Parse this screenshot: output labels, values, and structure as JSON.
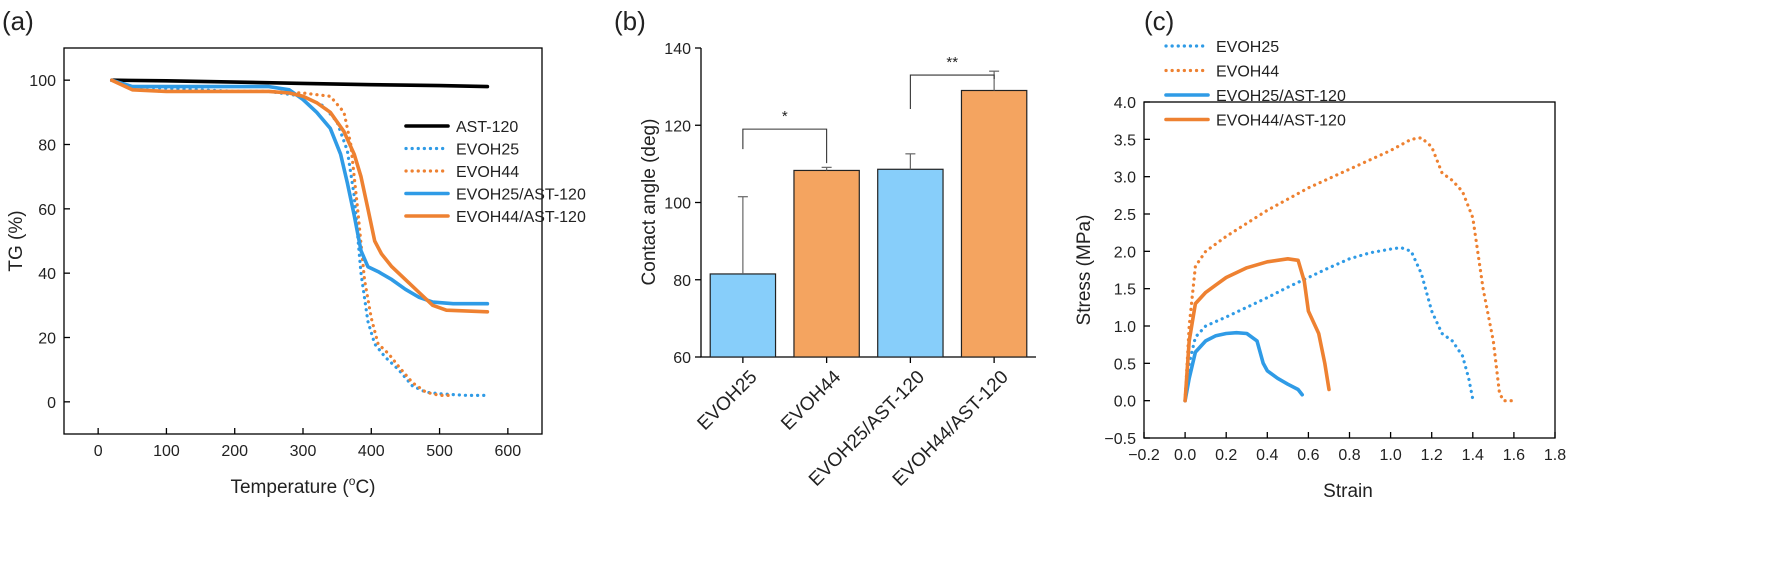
{
  "colors": {
    "blue": "#2f9be6",
    "orange": "#ee8131",
    "black": "#000000",
    "bar_blue": "#87cefa",
    "bar_orange": "#f4a460"
  },
  "panel_labels": [
    "(a)",
    "(b)",
    "(c)"
  ],
  "chart_data": [
    {
      "type": "line",
      "panel": "(a)",
      "xlabel": "Temperature (",
      "xlabel_sup": "o",
      "xlabel_end": "C)",
      "ylabel": "TG (%)",
      "xlim": [
        -50,
        650
      ],
      "ylim": [
        -10,
        110
      ],
      "xticks": [
        0,
        100,
        200,
        300,
        400,
        500,
        600
      ],
      "yticks": [
        0,
        20,
        40,
        60,
        80,
        100
      ],
      "legend_position": "right",
      "series": [
        {
          "name": "AST-120",
          "style": "solid",
          "color": "#000000",
          "x": [
            20,
            100,
            200,
            300,
            400,
            500,
            570
          ],
          "y": [
            100,
            99.8,
            99.4,
            99,
            98.6,
            98.3,
            98
          ]
        },
        {
          "name": "EVOH25",
          "style": "dotted",
          "color": "#2f9be6",
          "x": [
            20,
            50,
            100,
            150,
            200,
            250,
            300,
            330,
            350,
            365,
            375,
            385,
            395,
            405,
            420,
            440,
            460,
            480,
            500,
            540,
            570
          ],
          "y": [
            100,
            98,
            97.5,
            97,
            96.5,
            96.5,
            95,
            92,
            87,
            78,
            64,
            40,
            25,
            18,
            14,
            10,
            5,
            3,
            2.5,
            2,
            2
          ]
        },
        {
          "name": "EVOH44",
          "style": "dotted",
          "color": "#ee8131",
          "x": [
            20,
            50,
            100,
            150,
            200,
            250,
            300,
            340,
            360,
            370,
            380,
            390,
            400,
            410,
            425,
            440,
            460,
            480,
            500,
            520
          ],
          "y": [
            100,
            97,
            96.5,
            96.5,
            96.5,
            96.5,
            96,
            95,
            90,
            80,
            60,
            38,
            26,
            18,
            15,
            11,
            6,
            3,
            2,
            2
          ]
        },
        {
          "name": "EVOH25/AST-120",
          "style": "solid",
          "color": "#2f9be6",
          "x": [
            20,
            50,
            100,
            150,
            200,
            250,
            280,
            300,
            320,
            340,
            355,
            365,
            375,
            385,
            395,
            410,
            430,
            450,
            470,
            490,
            520,
            570
          ],
          "y": [
            100,
            98,
            98,
            98,
            98,
            98,
            97,
            94,
            90,
            85,
            77,
            68,
            58,
            47,
            42,
            40.5,
            38,
            35,
            32.5,
            31,
            30.5,
            30.5
          ]
        },
        {
          "name": "EVOH44/AST-120",
          "style": "solid",
          "color": "#ee8131",
          "x": [
            20,
            50,
            100,
            150,
            200,
            250,
            280,
            300,
            320,
            340,
            360,
            375,
            385,
            395,
            405,
            415,
            430,
            450,
            470,
            490,
            510,
            570
          ],
          "y": [
            100,
            97,
            96.5,
            96.5,
            96.5,
            96.5,
            96,
            95,
            93,
            90,
            84,
            77,
            70,
            60,
            50,
            46,
            42,
            38,
            34,
            30,
            28.5,
            28
          ]
        }
      ]
    },
    {
      "type": "bar",
      "panel": "(b)",
      "ylabel": "Contact angle (deg)",
      "ylim": [
        60,
        140
      ],
      "yticks": [
        60,
        80,
        100,
        120,
        140
      ],
      "categories": [
        "EVOH25",
        "EVOH44",
        "EVOH25/AST-120",
        "EVOH44/AST-120"
      ],
      "values": [
        81.5,
        108.3,
        108.6,
        129
      ],
      "errors": [
        20,
        0.8,
        4,
        5
      ],
      "bar_colors": [
        "#87cefa",
        "#f4a460",
        "#87cefa",
        "#f4a460"
      ],
      "significance": [
        {
          "from": 0,
          "to": 1,
          "label": "*"
        },
        {
          "from": 2,
          "to": 3,
          "label": "**"
        }
      ]
    },
    {
      "type": "line",
      "panel": "(c)",
      "xlabel": "Strain",
      "ylabel": "Stress (MPa)",
      "xlim": [
        -0.2,
        1.8
      ],
      "ylim": [
        -0.5,
        4.0
      ],
      "xticks": [
        -0.2,
        0.0,
        0.2,
        0.4,
        0.6,
        0.8,
        1.0,
        1.2,
        1.4,
        1.6,
        1.8
      ],
      "xtick_labels": [
        "−0.2",
        "0.0",
        "0.2",
        "0.4",
        "0.6",
        "0.8",
        "1.0",
        "1.2",
        "1.4",
        "1.6",
        "1.8"
      ],
      "yticks": [
        -0.5,
        0.0,
        0.5,
        1.0,
        1.5,
        2.0,
        2.5,
        3.0,
        3.5,
        4.0
      ],
      "ytick_labels": [
        "−0.5",
        "0.0",
        "0.5",
        "1.0",
        "1.5",
        "2.0",
        "2.5",
        "3.0",
        "3.5",
        "4.0"
      ],
      "legend_position": "top-left",
      "series": [
        {
          "name": "EVOH25",
          "style": "dotted",
          "color": "#2f9be6",
          "x": [
            0.0,
            0.02,
            0.05,
            0.1,
            0.2,
            0.3,
            0.4,
            0.5,
            0.6,
            0.7,
            0.8,
            0.9,
            1.0,
            1.05,
            1.1,
            1.15,
            1.2,
            1.25,
            1.3,
            1.35,
            1.38,
            1.4
          ],
          "y": [
            0.0,
            0.5,
            0.85,
            1.0,
            1.12,
            1.25,
            1.38,
            1.52,
            1.65,
            1.78,
            1.9,
            1.98,
            2.03,
            2.05,
            2.0,
            1.7,
            1.2,
            0.9,
            0.8,
            0.6,
            0.3,
            0.02
          ]
        },
        {
          "name": "EVOH44",
          "style": "dotted",
          "color": "#ee8131",
          "x": [
            0.0,
            0.02,
            0.05,
            0.1,
            0.2,
            0.4,
            0.6,
            0.8,
            1.0,
            1.1,
            1.15,
            1.2,
            1.25,
            1.3,
            1.35,
            1.4,
            1.45,
            1.5,
            1.53,
            1.55,
            1.6
          ],
          "y": [
            0.0,
            1.0,
            1.8,
            2.0,
            2.2,
            2.55,
            2.85,
            3.1,
            3.35,
            3.5,
            3.52,
            3.4,
            3.05,
            2.95,
            2.8,
            2.45,
            1.5,
            0.8,
            0.1,
            0.0,
            0.0
          ]
        },
        {
          "name": "EVOH25/AST-120",
          "style": "solid",
          "color": "#2f9be6",
          "x": [
            0.0,
            0.02,
            0.05,
            0.1,
            0.15,
            0.2,
            0.25,
            0.3,
            0.35,
            0.38,
            0.4,
            0.45,
            0.5,
            0.55,
            0.57
          ],
          "y": [
            0.0,
            0.3,
            0.65,
            0.8,
            0.87,
            0.9,
            0.91,
            0.9,
            0.8,
            0.5,
            0.4,
            0.3,
            0.22,
            0.15,
            0.08
          ]
        },
        {
          "name": "EVOH44/AST-120",
          "style": "solid",
          "color": "#ee8131",
          "x": [
            0.0,
            0.02,
            0.05,
            0.1,
            0.15,
            0.2,
            0.3,
            0.4,
            0.5,
            0.55,
            0.58,
            0.6,
            0.65,
            0.68,
            0.7
          ],
          "y": [
            0.0,
            0.8,
            1.3,
            1.45,
            1.55,
            1.65,
            1.78,
            1.86,
            1.9,
            1.88,
            1.6,
            1.2,
            0.9,
            0.5,
            0.15
          ]
        }
      ]
    }
  ]
}
